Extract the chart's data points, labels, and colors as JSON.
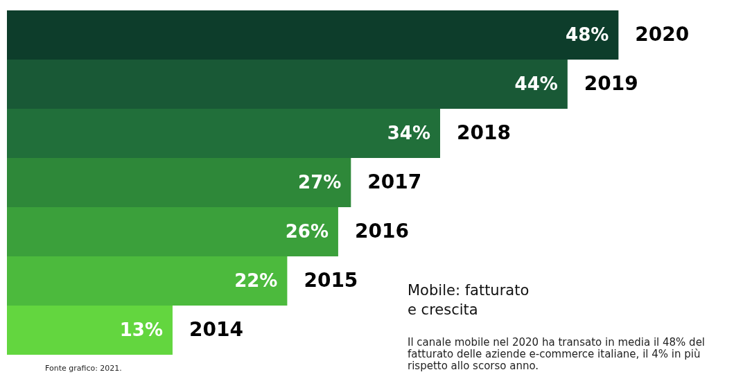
{
  "chart_data": {
    "type": "bar",
    "orientation": "horizontal",
    "title": "Mobile: fatturato\ne crescita",
    "categories": [
      "2020",
      "2019",
      "2018",
      "2017",
      "2016",
      "2015",
      "2014"
    ],
    "values": [
      48,
      44,
      34,
      27,
      26,
      22,
      13
    ],
    "colors": [
      "#0d3d2b",
      "#195936",
      "#216f3a",
      "#2e8839",
      "#3ba03b",
      "#4cba3d",
      "#63d63f"
    ],
    "value_labels": [
      "48%",
      "44%",
      "34%",
      "27%",
      "26%",
      "22%",
      "13%"
    ],
    "annotations": [
      "Il canale mobile nel 2020 ha transato in media il 48% del\nfatturato delle aziende e-commerce italiane, il 4% in più\nrispetto allo scorso anno.",
      "Fonte grafico: 2021."
    ],
    "grid": false
  }
}
